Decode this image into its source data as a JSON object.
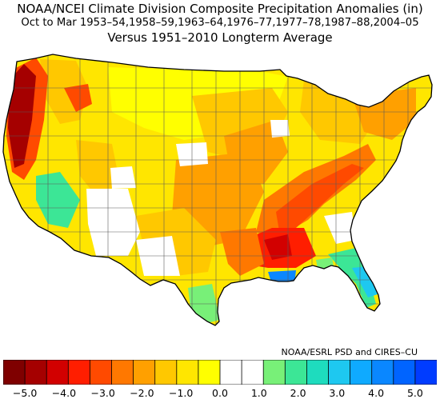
{
  "title": {
    "line1": "NOAA/NCEI Climate Division Composite Precipitation Anomalies (in)",
    "line2": "Oct to Mar  1953–54,1958–59,1963–64,1976–77,1977–78,1987–88,2004–05",
    "line3": "Versus 1951–2010 Longterm Average"
  },
  "credit": "NOAA/ESRL PSD and CIRES–CU",
  "colorbar": {
    "colors": [
      "#7f0000",
      "#a50000",
      "#d20000",
      "#ff1e00",
      "#ff4a00",
      "#ff7800",
      "#ffa000",
      "#ffc800",
      "#ffe600",
      "#ffff00",
      "#ffffff",
      "#ffffff",
      "#78f078",
      "#3ce696",
      "#1edcbe",
      "#1ec8f0",
      "#0faaff",
      "#0a87ff",
      "#0064ff",
      "#003cff"
    ],
    "tick_labels": [
      "−5.0",
      "−4.0",
      "−3.0",
      "−2.0",
      "−1.0",
      "0.0",
      "1.0",
      "2.0",
      "3.0",
      "4.0",
      "5.0"
    ],
    "tick_values": [
      -5,
      -4,
      -3,
      -2,
      -1,
      0,
      1,
      2,
      3,
      4,
      5
    ]
  },
  "map": {
    "region": "Contiguous United States climate divisions",
    "units": "in",
    "colors": {
      "outline": "#000000",
      "division_lines": "#5a5a5a",
      "very_dry": "#a50000",
      "dry": "#ff4a00",
      "moderately_dry": "#ffa000",
      "slightly_dry": "#ffc800",
      "near_normal_dry": "#ffe600",
      "neutral": "#ffffff",
      "wet": "#78f078",
      "wetter": "#3ce696",
      "very_wet": "#1ec8f0",
      "wettest": "#0a87ff"
    }
  }
}
